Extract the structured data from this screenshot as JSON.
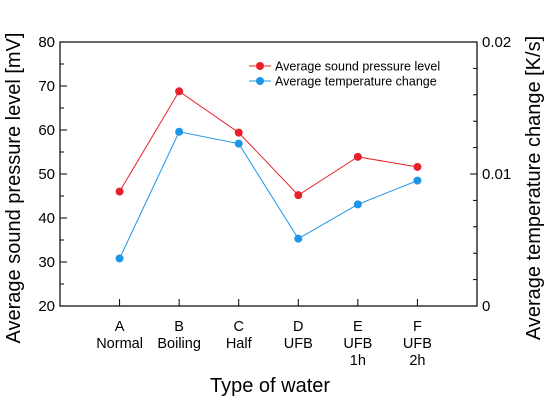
{
  "chart_data": {
    "type": "line",
    "xlabel": "Type of water",
    "ylabel": "Average sound pressure level [mV]",
    "y2label": "Average temperature change [K/s]",
    "categories": [
      [
        "A",
        "Normal"
      ],
      [
        "B",
        "Boiling"
      ],
      [
        "C",
        "Half"
      ],
      [
        "D",
        "UFB"
      ],
      [
        "E",
        "UFB",
        "1h"
      ],
      [
        "F",
        "UFB",
        "2h"
      ]
    ],
    "ylim": [
      20,
      80
    ],
    "y_ticks": [
      "20",
      "30",
      "40",
      "50",
      "60",
      "70",
      "80"
    ],
    "y2lim": [
      0,
      0.02
    ],
    "y2_ticks": [
      "0",
      "0.01",
      "0.02"
    ],
    "grid": false,
    "legend_position": "top-right",
    "series": [
      {
        "name": "Average sound pressure level",
        "axis": "left",
        "color": "#e8202a",
        "values": [
          46.0,
          68.8,
          59.4,
          45.2,
          53.9,
          51.6
        ]
      },
      {
        "name": "Average temperature change",
        "axis": "right",
        "color": "#1e96e6",
        "values": [
          0.0036,
          0.0132,
          0.0123,
          0.0051,
          0.0077,
          0.0095
        ]
      }
    ]
  }
}
